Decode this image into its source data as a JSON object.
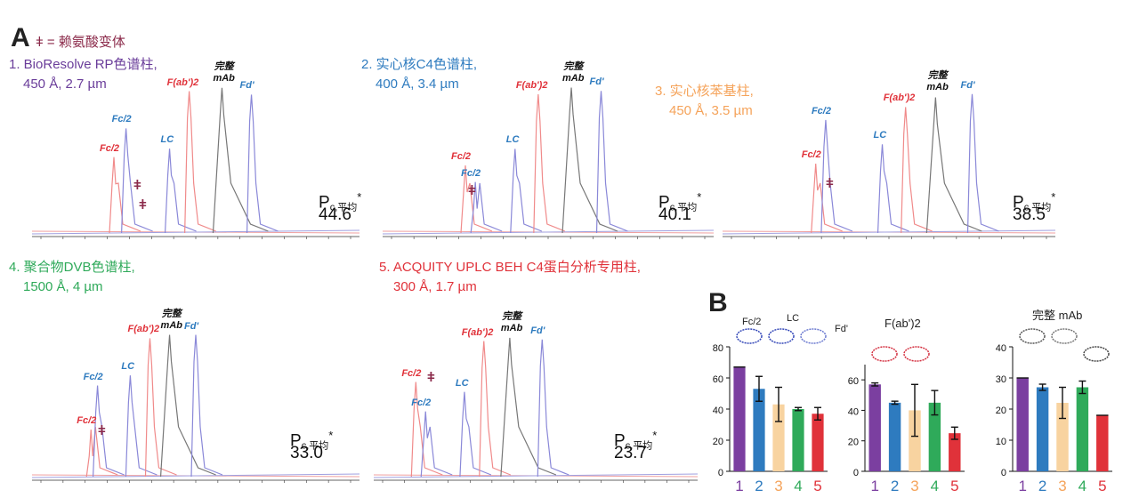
{
  "panel_a_label": "A",
  "panel_b_label": "B",
  "variant_legend": "ǂ = 赖氨酸变体",
  "chart_data": [
    {
      "type": "line",
      "title": "1. BioResolve RP色谱柱,",
      "subtitle": "450 Å, 2.7 µm",
      "title_color": "#6a3d9a",
      "pc_label": "Pc,平均*",
      "pc_value": "44.6",
      "peaks": [
        {
          "label": "Fc/2",
          "color": "red",
          "pos": 0.25,
          "height": 0.47
        },
        {
          "label": "Fc/2",
          "color": "blue",
          "pos": 0.287,
          "height": 0.64
        },
        {
          "label": "LC",
          "color": "blue",
          "pos": 0.42,
          "height": 0.52
        },
        {
          "label": "F(ab')2",
          "color": "red",
          "pos": 0.48,
          "height": 0.86
        },
        {
          "label": "完整 mAb",
          "color": "black",
          "pos": 0.58,
          "height": 0.88
        },
        {
          "label": "Fd'",
          "color": "blue",
          "pos": 0.67,
          "height": 0.84
        }
      ],
      "variants": 2
    },
    {
      "type": "line",
      "title": "2. 实心核C4色谱柱,",
      "subtitle": "400 Å, 3.4 µm",
      "title_color": "#2e7bbf",
      "pc_label": "Pc,平均*",
      "pc_value": "40.1",
      "peaks": [
        {
          "label": "Fc/2",
          "color": "red",
          "pos": 0.25,
          "height": 0.43
        },
        {
          "label": "Fc/2",
          "color": "blue",
          "pos": 0.28,
          "height": 0.33
        },
        {
          "label": "LC",
          "color": "blue",
          "pos": 0.4,
          "height": 0.53
        },
        {
          "label": "F(ab')2",
          "color": "red",
          "pos": 0.47,
          "height": 0.86
        },
        {
          "label": "完整 mAb",
          "color": "black",
          "pos": 0.57,
          "height": 0.9
        },
        {
          "label": "Fd'",
          "color": "blue",
          "pos": 0.66,
          "height": 0.88
        }
      ],
      "variants": 1
    },
    {
      "type": "line",
      "title": "3. 实心核苯基柱,",
      "subtitle": "450 Å, 3.5 µm",
      "title_color": "#f5a35a",
      "pc_label": "Pc,平均*",
      "pc_value": "38.5",
      "peaks": [
        {
          "label": "Fc/2",
          "color": "red",
          "pos": 0.28,
          "height": 0.45
        },
        {
          "label": "Fc/2",
          "color": "blue",
          "pos": 0.31,
          "height": 0.72
        },
        {
          "label": "LC",
          "color": "blue",
          "pos": 0.48,
          "height": 0.57
        },
        {
          "label": "F(ab')2",
          "color": "red",
          "pos": 0.55,
          "height": 0.8
        },
        {
          "label": "完整 mAb",
          "color": "black",
          "pos": 0.64,
          "height": 0.86
        },
        {
          "label": "Fd'",
          "color": "blue",
          "pos": 0.75,
          "height": 0.88
        }
      ],
      "variants": 1
    },
    {
      "type": "line",
      "title": "4. 聚合物DVB色谱柱,",
      "subtitle": "1500 Å, 4 µm",
      "title_color": "#2faa5a",
      "pc_label": "Pc,平均*",
      "pc_value": "33.0",
      "peaks": [
        {
          "label": "Fc/2",
          "color": "red",
          "pos": 0.18,
          "height": 0.3
        },
        {
          "label": "Fc/2",
          "color": "blue",
          "pos": 0.2,
          "height": 0.56
        },
        {
          "label": "LC",
          "color": "blue",
          "pos": 0.3,
          "height": 0.62
        },
        {
          "label": "F(ab')2",
          "color": "red",
          "pos": 0.36,
          "height": 0.84
        },
        {
          "label": "完整 mAb",
          "color": "black",
          "pos": 0.42,
          "height": 0.86
        },
        {
          "label": "Fd'",
          "color": "blue",
          "pos": 0.5,
          "height": 0.86
        }
      ],
      "variants": 1
    },
    {
      "type": "line",
      "title": "5. ACQUITY UPLC BEH C4蛋白分析专用柱,",
      "subtitle": "300 Å, 1.7 µm",
      "title_color": "#e0323a",
      "pc_label": "Pc,平均*",
      "pc_value": "23.7",
      "peaks": [
        {
          "label": "Fc/2",
          "color": "red",
          "pos": 0.13,
          "height": 0.6
        },
        {
          "label": "Fc/2",
          "color": "blue",
          "pos": 0.16,
          "height": 0.42
        },
        {
          "label": "LC",
          "color": "blue",
          "pos": 0.28,
          "height": 0.54
        },
        {
          "label": "F(ab')2",
          "color": "red",
          "pos": 0.34,
          "height": 0.85
        },
        {
          "label": "完整 mAb",
          "color": "black",
          "pos": 0.42,
          "height": 0.87
        },
        {
          "label": "Fd'",
          "color": "blue",
          "pos": 0.52,
          "height": 0.86
        }
      ],
      "variants": 1
    },
    {
      "type": "bar",
      "title": "",
      "structure_labels": [
        "Fc/2",
        "LC",
        "Fd'"
      ],
      "categories": [
        "1",
        "2",
        "3",
        "4",
        "5"
      ],
      "values": [
        67,
        53,
        43,
        40,
        37
      ],
      "errors": [
        0,
        8,
        11,
        1,
        4
      ],
      "ylim": [
        0,
        80
      ],
      "yticks": [
        0,
        20,
        40,
        60,
        80
      ]
    },
    {
      "type": "bar",
      "title": "F(ab')2",
      "categories": [
        "1",
        "2",
        "3",
        "4",
        "5"
      ],
      "values": [
        57,
        45,
        40,
        45,
        25
      ],
      "errors": [
        1,
        1,
        17,
        8,
        4
      ],
      "ylim": [
        0,
        70
      ],
      "yticks": [
        0,
        20,
        40,
        60
      ]
    },
    {
      "type": "bar",
      "title": "完整 mAb",
      "categories": [
        "1",
        "2",
        "3",
        "4",
        "5"
      ],
      "values": [
        30,
        27,
        22,
        27,
        18
      ],
      "errors": [
        0,
        1,
        5,
        2,
        0
      ],
      "ylim": [
        0,
        40
      ],
      "yticks": [
        0,
        10,
        20,
        30,
        40
      ]
    }
  ],
  "bar_colors": [
    "#7b3fa0",
    "#2e7bbf",
    "#f8d3a0",
    "#2faa5a",
    "#e0323a"
  ]
}
